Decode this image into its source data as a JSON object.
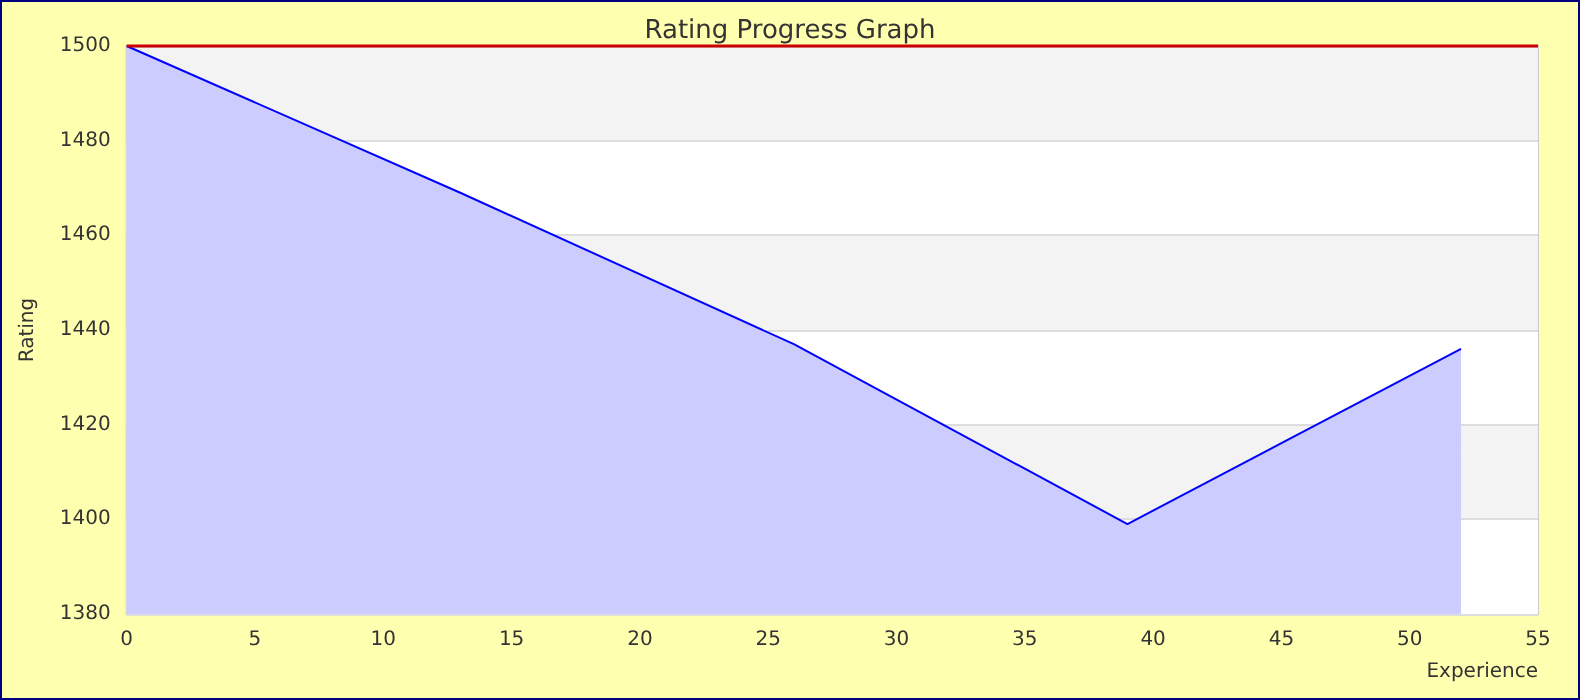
{
  "chart_data": {
    "type": "area",
    "title": "Rating Progress Graph",
    "xlabel": "Experience",
    "ylabel": "Rating",
    "x": [
      0,
      13,
      26,
      39,
      52
    ],
    "series": [
      {
        "color": "#0000ff",
        "values": [
          1500,
          1469,
          1437,
          1399,
          1436
        ]
      }
    ],
    "xlim": [
      0,
      55
    ],
    "xticks": [
      0,
      5,
      10,
      15,
      20,
      25,
      30,
      35,
      40,
      45,
      50,
      55
    ],
    "ylim": [
      1380,
      1500
    ],
    "yticks": [
      1380,
      1400,
      1420,
      1440,
      1460,
      1480,
      1500
    ],
    "ref_lines": [
      {
        "axis": "y",
        "value": 1500,
        "color": "#cc0000"
      }
    ],
    "grid": "y",
    "marker": "none"
  }
}
